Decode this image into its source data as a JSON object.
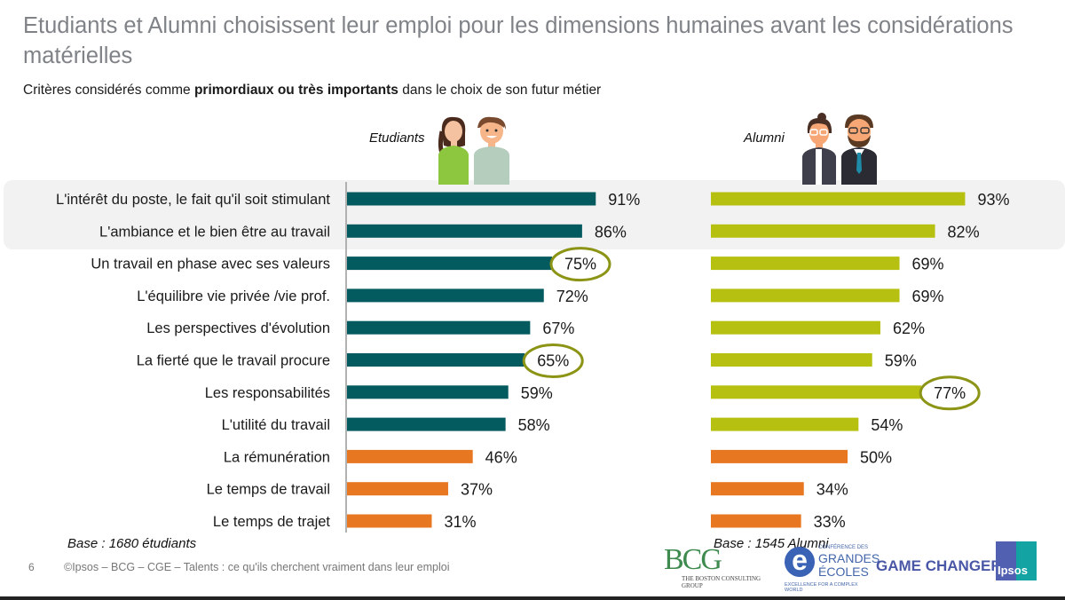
{
  "header": {
    "title": "Etudiants et Alumni choisissent leur emploi pour les dimensions humaines avant les considérations matérielles",
    "subtitle_pre": "Critères considérés comme ",
    "subtitle_bold": "primordiaux ou très importants",
    "subtitle_post": " dans le choix de son futur métier"
  },
  "groups": {
    "students_label": "Etudiants",
    "alumni_label": "Alumni",
    "students_base": "Base : 1680 étudiants",
    "alumni_base": "Base : 1545 Alumni"
  },
  "footer": {
    "page_number": "6",
    "credits": "©Ipsos – BCG – CGE – Talents : ce qu'ils cherchent vraiment dans leur emploi"
  },
  "logos": {
    "bcg": "BCG",
    "bcg_sub": "THE BOSTON CONSULTING GROUP",
    "cge_small": "CONFÉRENCE DES",
    "cge_line1": "GRANDES",
    "cge_line2": "ÉCOLES",
    "cge_tag": "EXCELLENCE FOR A COMPLEX WORLD",
    "game_changers": "GAME CHANGERS",
    "ipsos": "Ipsos"
  },
  "colors": {
    "students_human": "#035a5f",
    "alumni_human": "#b6c011",
    "material": "#e87722",
    "circle": "#8c9416",
    "highlight_bg": "#f2f2f2"
  },
  "chart_data": {
    "type": "bar",
    "orientation": "horizontal",
    "title": "Critères considérés comme primordiaux ou très importants dans le choix de son futur métier",
    "unit": "%",
    "xlim": [
      0,
      100
    ],
    "categories": [
      "L'intérêt du poste, le fait qu'il soit stimulant",
      "L'ambiance et le bien être au travail",
      "Un travail en phase avec ses valeurs",
      "L'équilibre vie privée /vie prof.",
      "Les perspectives d'évolution",
      "La fierté que le travail procure",
      "Les responsabilités",
      "L'utilité du travail",
      "La rémunération",
      "Le temps de travail",
      "Le temps de trajet"
    ],
    "category_type": [
      "human",
      "human",
      "human",
      "human",
      "human",
      "human",
      "human",
      "human",
      "material",
      "material",
      "material"
    ],
    "highlighted_categories": [
      0,
      1
    ],
    "series": [
      {
        "name": "Etudiants",
        "values": [
          91,
          86,
          75,
          72,
          67,
          65,
          59,
          58,
          46,
          37,
          31
        ],
        "circled": [
          2,
          5
        ]
      },
      {
        "name": "Alumni",
        "values": [
          93,
          82,
          69,
          69,
          62,
          59,
          77,
          54,
          50,
          34,
          33
        ],
        "circled": [
          6
        ]
      }
    ],
    "legend": "none",
    "grid": false
  }
}
